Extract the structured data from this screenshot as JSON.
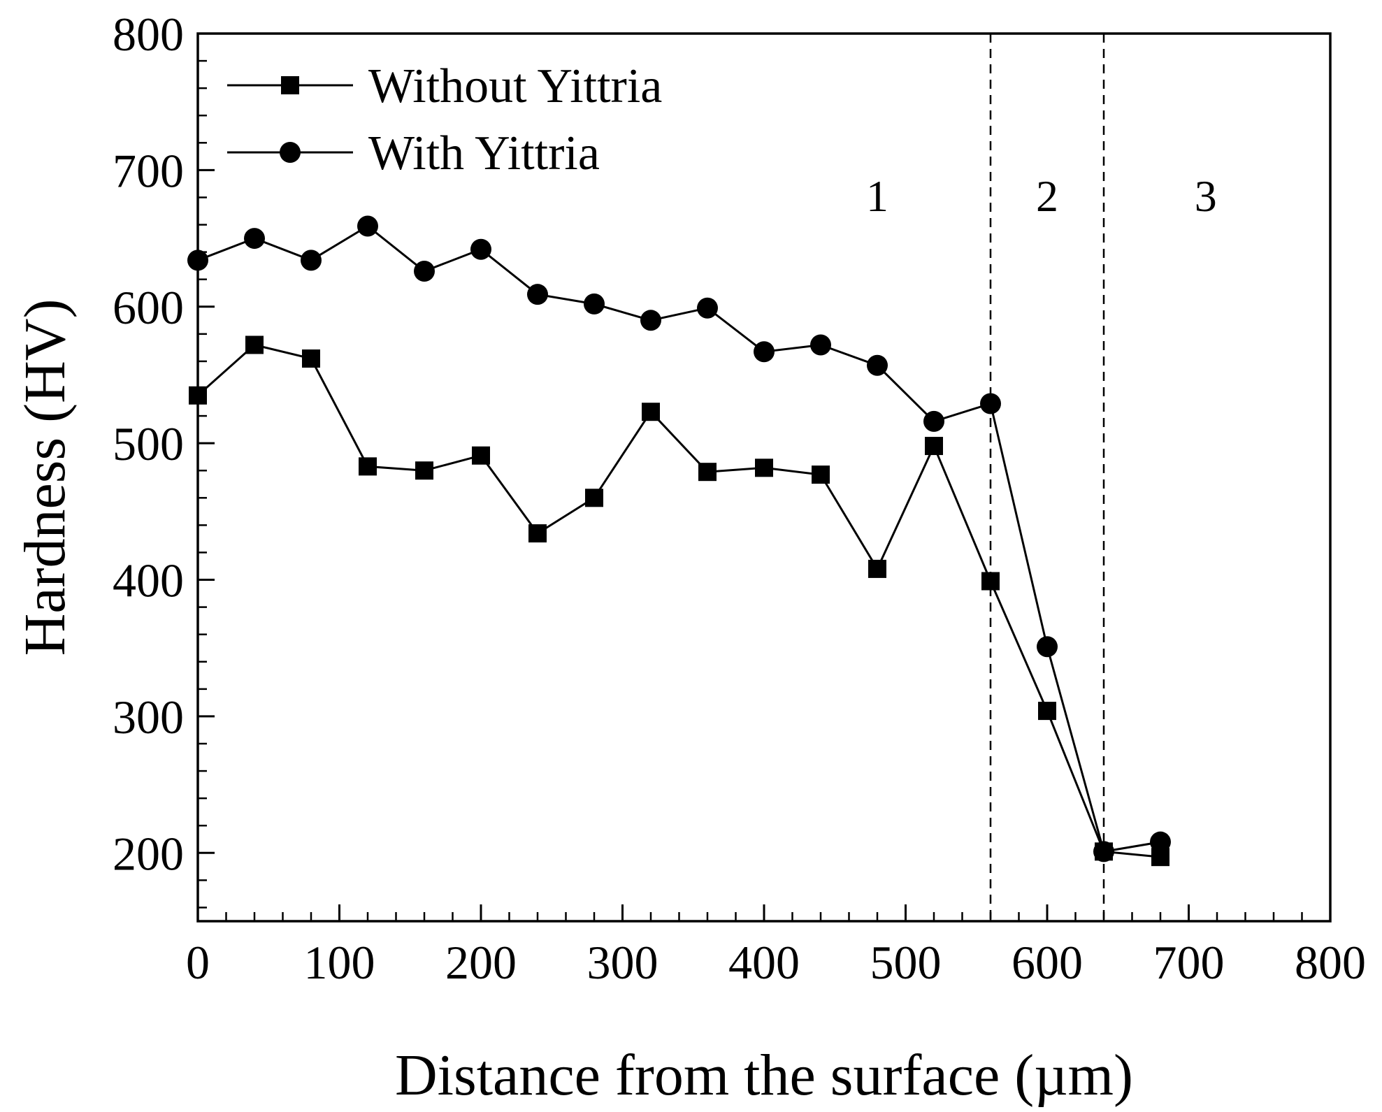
{
  "chart_data": {
    "type": "line",
    "title": "",
    "xlabel": "Distance from the surface (µm)",
    "ylabel": "Hardness (HV)",
    "xlim": [
      0,
      800
    ],
    "ylim": [
      150,
      800
    ],
    "xticks": [
      0,
      100,
      200,
      300,
      400,
      500,
      600,
      700,
      800
    ],
    "yticks": [
      200,
      300,
      400,
      500,
      600,
      700,
      800
    ],
    "x_minor_step": 20,
    "y_minor_step": 20,
    "grid": false,
    "legend_position": "top-left",
    "series": [
      {
        "name": "Without Yittria",
        "marker": "square",
        "x": [
          0,
          40,
          80,
          120,
          160,
          200,
          240,
          280,
          320,
          360,
          400,
          440,
          480,
          520,
          560,
          600,
          640,
          680
        ],
        "values": [
          535,
          572,
          562,
          483,
          480,
          491,
          434,
          460,
          523,
          479,
          482,
          477,
          408,
          498,
          399,
          304,
          201,
          197
        ]
      },
      {
        "name": "With Yittria",
        "marker": "circle",
        "x": [
          0,
          40,
          80,
          120,
          160,
          200,
          240,
          280,
          320,
          360,
          400,
          440,
          480,
          520,
          560,
          600,
          640,
          680
        ],
        "values": [
          634,
          650,
          634,
          659,
          626,
          642,
          609,
          602,
          590,
          599,
          567,
          572,
          557,
          516,
          529,
          351,
          201,
          208
        ]
      }
    ],
    "vertical_lines": [
      {
        "x": 560,
        "style": "dashed"
      },
      {
        "x": 640,
        "style": "dashed"
      }
    ],
    "region_labels": [
      {
        "text": "1",
        "x": 480,
        "y": 670
      },
      {
        "text": "2",
        "x": 600,
        "y": 670
      },
      {
        "text": "3",
        "x": 712,
        "y": 670
      }
    ]
  }
}
